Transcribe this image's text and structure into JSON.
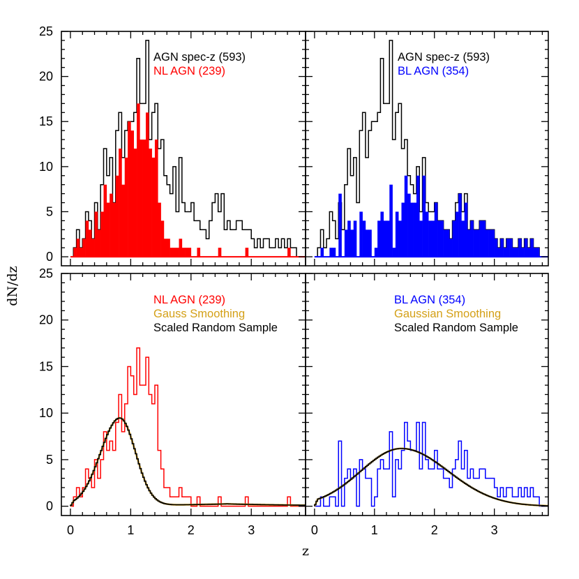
{
  "figure": {
    "xlabel": "z",
    "ylabel": "dN/dz"
  },
  "colors": {
    "all": "#000000",
    "nl": "#ff0000",
    "bl": "#0000ff",
    "smooth": "#d4a017",
    "random": "#000000"
  },
  "chart_data": [
    {
      "id": "top-left",
      "type": "histogram",
      "xlim": [
        -0.15,
        3.9
      ],
      "ylim": [
        -1,
        25
      ],
      "xticks": [],
      "yticks": [
        "0",
        "5",
        "10",
        "15",
        "20",
        "25"
      ],
      "bin_width": 0.05,
      "legend": [
        {
          "text": "AGN spec-z (593)",
          "color": "#000000"
        },
        {
          "text": "NL AGN (239)",
          "color": "#ff0000"
        }
      ],
      "series": [
        {
          "name": "AGN spec-z (593)",
          "style": "step",
          "color": "#000000",
          "x0": 0.0,
          "values": [
            0,
            1,
            3,
            1,
            2,
            5,
            4,
            2,
            6,
            3,
            8,
            12,
            9,
            11,
            6,
            14,
            16,
            11,
            14,
            15,
            15,
            16,
            22,
            17,
            17,
            24,
            13,
            16,
            17,
            12,
            13,
            9,
            8,
            7,
            10,
            5,
            11,
            6,
            5,
            5,
            6,
            4,
            4,
            3,
            3,
            2,
            4,
            6,
            7,
            5,
            7,
            3,
            4,
            3,
            3,
            4,
            4,
            3,
            3,
            3,
            2,
            1,
            2,
            1,
            2,
            2,
            1,
            1,
            2,
            1,
            2,
            1,
            2,
            1,
            1,
            0,
            0,
            0
          ]
        },
        {
          "name": "NL AGN (239)",
          "style": "filled",
          "color": "#ff0000",
          "x0": 0.0,
          "values": [
            0,
            1,
            2,
            1,
            2,
            4,
            3,
            2,
            5,
            3,
            5,
            8,
            6,
            7,
            6,
            9,
            12,
            8,
            11,
            15,
            14,
            12,
            17,
            13,
            13,
            16,
            12,
            11,
            13,
            6,
            4,
            2,
            2,
            1,
            1,
            1,
            2,
            1,
            1,
            1,
            0,
            0,
            1,
            0,
            0,
            0,
            0,
            0,
            0,
            1,
            0,
            0,
            0,
            0,
            0,
            0,
            0,
            0,
            1,
            0,
            0,
            0,
            0,
            0,
            0,
            0,
            0,
            0,
            0,
            0,
            0,
            0,
            1,
            0,
            0,
            0,
            0,
            0
          ]
        }
      ]
    },
    {
      "id": "top-right",
      "type": "histogram",
      "xlim": [
        -0.15,
        3.9
      ],
      "ylim": [
        -1,
        25
      ],
      "xticks": [],
      "yticks": [],
      "bin_width": 0.05,
      "legend": [
        {
          "text": "AGN spec-z (593)",
          "color": "#000000"
        },
        {
          "text": "BL AGN (354)",
          "color": "#0000ff"
        }
      ],
      "series": [
        {
          "name": "AGN spec-z (593)",
          "style": "step",
          "color": "#000000",
          "x0": 0.0,
          "values": [
            0,
            1,
            3,
            1,
            2,
            5,
            4,
            2,
            6,
            3,
            8,
            12,
            9,
            11,
            6,
            14,
            16,
            11,
            14,
            15,
            15,
            16,
            22,
            17,
            17,
            24,
            13,
            16,
            17,
            12,
            13,
            9,
            8,
            7,
            10,
            5,
            11,
            6,
            5,
            5,
            6,
            4,
            4,
            3,
            3,
            2,
            4,
            6,
            7,
            5,
            7,
            3,
            4,
            3,
            3,
            4,
            4,
            3,
            3,
            3,
            2,
            1,
            2,
            1,
            2,
            2,
            1,
            1,
            2,
            1,
            2,
            1,
            2,
            1,
            1,
            0,
            0,
            0
          ]
        },
        {
          "name": "BL AGN (354)",
          "style": "filled",
          "color": "#0000ff",
          "x0": 0.0,
          "values": [
            0,
            0,
            1,
            0,
            0,
            1,
            1,
            0,
            7,
            0,
            3,
            4,
            3,
            4,
            0,
            5,
            4,
            3,
            3,
            0,
            1,
            4,
            5,
            4,
            4,
            8,
            1,
            5,
            4,
            6,
            9,
            7,
            6,
            6,
            9,
            4,
            9,
            5,
            4,
            4,
            6,
            4,
            4,
            3,
            3,
            2,
            4,
            5,
            7,
            4,
            6,
            3,
            4,
            3,
            3,
            4,
            4,
            3,
            3,
            3,
            2,
            1,
            2,
            1,
            2,
            2,
            1,
            1,
            2,
            1,
            2,
            1,
            2,
            1,
            1,
            0,
            0,
            0
          ]
        }
      ]
    },
    {
      "id": "bottom-left",
      "type": "histogram",
      "xlim": [
        -0.15,
        3.9
      ],
      "ylim": [
        -1,
        25
      ],
      "xticks": [
        "0",
        "1",
        "2",
        "3"
      ],
      "yticks": [
        "0",
        "5",
        "10",
        "15",
        "20",
        "25"
      ],
      "bin_width": 0.05,
      "legend": [
        {
          "text": "NL AGN (239)",
          "color": "#ff0000"
        },
        {
          "text": "Gauss Smoothing",
          "color": "#d4a017"
        },
        {
          "text": "Scaled Random Sample",
          "color": "#000000"
        }
      ],
      "series": [
        {
          "name": "NL AGN (239)",
          "style": "step",
          "color": "#ff0000",
          "x0": 0.0,
          "values": [
            0,
            1,
            2,
            1,
            2,
            4,
            3,
            2,
            5,
            3,
            5,
            8,
            6,
            7,
            6,
            9,
            12,
            8,
            11,
            15,
            14,
            12,
            17,
            13,
            13,
            16,
            12,
            11,
            13,
            6,
            4,
            2,
            2,
            1,
            1,
            1,
            2,
            1,
            1,
            1,
            0,
            0,
            1,
            0,
            0,
            0,
            0,
            0,
            0,
            1,
            0,
            0,
            0,
            0,
            0,
            0,
            0,
            0,
            1,
            0,
            0,
            0,
            0,
            0,
            0,
            0,
            0,
            0,
            0,
            0,
            0,
            0,
            1,
            0,
            0,
            0,
            0,
            0
          ]
        },
        {
          "name": "Gauss Smoothing",
          "style": "curve",
          "color": "#d4a017",
          "peak": 9.4,
          "mu": 0.82,
          "sigma_left": 0.32,
          "sigma_right": 0.26,
          "tail": 0.25
        },
        {
          "name": "Scaled Random Sample",
          "style": "step-curve",
          "color": "#000000",
          "peak": 9.4,
          "mu": 0.82,
          "sigma_left": 0.32,
          "sigma_right": 0.26,
          "tail": 0.25
        }
      ]
    },
    {
      "id": "bottom-right",
      "type": "histogram",
      "xlim": [
        -0.15,
        3.9
      ],
      "ylim": [
        -1,
        25
      ],
      "xticks": [
        "0",
        "1",
        "2",
        "3"
      ],
      "yticks": [],
      "bin_width": 0.05,
      "legend": [
        {
          "text": "BL AGN (354)",
          "color": "#0000ff"
        },
        {
          "text": "Gaussian Smoothing",
          "color": "#d4a017"
        },
        {
          "text": "Scaled Random Sample",
          "color": "#000000"
        }
      ],
      "series": [
        {
          "name": "BL AGN (354)",
          "style": "step",
          "color": "#0000ff",
          "x0": 0.0,
          "values": [
            0,
            0,
            1,
            0,
            0,
            1,
            1,
            0,
            7,
            0,
            3,
            4,
            3,
            4,
            0,
            5,
            4,
            3,
            3,
            0,
            1,
            4,
            5,
            4,
            4,
            8,
            1,
            5,
            4,
            6,
            9,
            7,
            6,
            6,
            9,
            4,
            9,
            5,
            4,
            4,
            6,
            4,
            4,
            3,
            3,
            2,
            4,
            5,
            7,
            4,
            6,
            3,
            4,
            3,
            3,
            4,
            4,
            3,
            3,
            3,
            2,
            1,
            2,
            1,
            2,
            2,
            1,
            1,
            2,
            1,
            2,
            1,
            2,
            1,
            1,
            0,
            0,
            0
          ]
        },
        {
          "name": "Gaussian Smoothing",
          "style": "curve",
          "color": "#d4a017",
          "peak": 6.2,
          "mu": 1.45,
          "sigma_left": 0.68,
          "sigma_right": 0.78,
          "tail": 0.0
        },
        {
          "name": "Scaled Random Sample",
          "style": "step-curve",
          "color": "#000000",
          "peak": 6.2,
          "mu": 1.45,
          "sigma_left": 0.68,
          "sigma_right": 0.78,
          "tail": 0.0
        }
      ]
    }
  ]
}
